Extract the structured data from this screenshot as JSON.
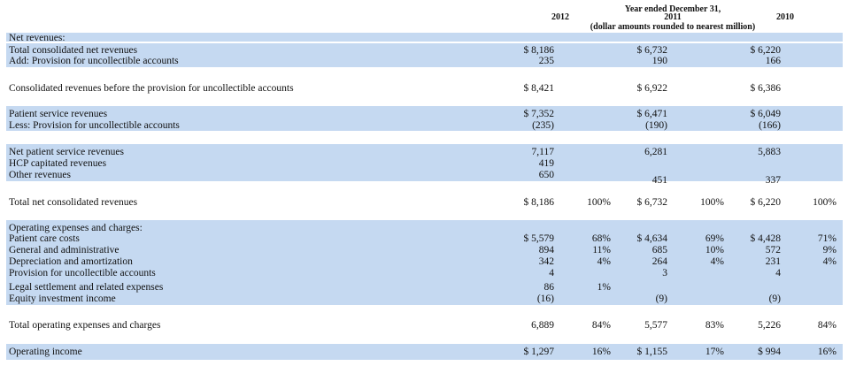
{
  "header": {
    "year_2012": "2012",
    "period_title": "Year ended December 31,",
    "year_2011": "2011",
    "units_note": "(dollar amounts rounded to nearest million)",
    "year_2010": "2010"
  },
  "rows": [
    {
      "label": "Net revenues:",
      "c2012": "",
      "p2012": "",
      "c2011": "",
      "p2011": "",
      "c2010": "",
      "p2010": ""
    },
    {
      "label": "Total consolidated net revenues",
      "c2012": "$ 8,186",
      "p2012": "",
      "c2011": "$ 6,732",
      "p2011": "",
      "c2010": "$ 6,220",
      "p2010": ""
    },
    {
      "label": "Add: Provision for uncollectible accounts",
      "c2012": "235",
      "p2012": "",
      "c2011": "190",
      "p2011": "",
      "c2010": "166",
      "p2010": ""
    },
    {
      "label": "Consolidated revenues before the provision for uncollectible accounts",
      "c2012": "$ 8,421",
      "p2012": "",
      "c2011": "$ 6,922",
      "p2011": "",
      "c2010": "$ 6,386",
      "p2010": ""
    },
    {
      "label": "Patient service revenues",
      "c2012": "$ 7,352",
      "p2012": "",
      "c2011": "$ 6,471",
      "p2011": "",
      "c2010": "$ 6,049",
      "p2010": ""
    },
    {
      "label": "Less: Provision for uncollectible accounts",
      "c2012": "(235)",
      "p2012": "",
      "c2011": "(190)",
      "p2011": "",
      "c2010": "(166)",
      "p2010": ""
    },
    {
      "label": "Net patient service revenues",
      "c2012": "7,117",
      "p2012": "",
      "c2011": "6,281",
      "p2011": "",
      "c2010": "5,883",
      "p2010": ""
    },
    {
      "label": "HCP capitated revenues",
      "c2012": "419",
      "p2012": "",
      "c2011": "",
      "p2011": "",
      "c2010": "",
      "p2010": ""
    },
    {
      "label": "Other revenues",
      "c2012": "650",
      "p2012": "",
      "c2011": "451",
      "p2011": "",
      "c2010": "337",
      "p2010": ""
    },
    {
      "label": "Total net consolidated revenues",
      "c2012": "$ 8,186",
      "p2012": "100%",
      "c2011": "$ 6,732",
      "p2011": "100%",
      "c2010": "$ 6,220",
      "p2010": "100%"
    },
    {
      "label": "Operating expenses and charges:",
      "c2012": "",
      "p2012": "",
      "c2011": "",
      "p2011": "",
      "c2010": "",
      "p2010": ""
    },
    {
      "label": "Patient care costs",
      "c2012": "$ 5,579",
      "p2012": "68%",
      "c2011": "$ 4,634",
      "p2011": "69%",
      "c2010": "$ 4,428",
      "p2010": "71%"
    },
    {
      "label": "General and administrative",
      "c2012": "894",
      "p2012": "11%",
      "c2011": "685",
      "p2011": "10%",
      "c2010": "572",
      "p2010": "9%"
    },
    {
      "label": "Depreciation and amortization",
      "c2012": "342",
      "p2012": "4%",
      "c2011": "264",
      "p2011": "4%",
      "c2010": "231",
      "p2010": "4%"
    },
    {
      "label": "Provision for uncollectible accounts",
      "c2012": "4",
      "p2012": "",
      "c2011": "3",
      "p2011": "",
      "c2010": "4",
      "p2010": ""
    },
    {
      "label": "Legal settlement and related expenses",
      "c2012": "86",
      "p2012": "1%",
      "c2011": "",
      "p2011": "",
      "c2010": "",
      "p2010": ""
    },
    {
      "label": "Equity investment income",
      "c2012": "(16)",
      "p2012": "",
      "c2011": "(9)",
      "p2011": "",
      "c2010": "(9)",
      "p2010": ""
    },
    {
      "label": "Total operating expenses and charges",
      "c2012": "6,889",
      "p2012": "84%",
      "c2011": "5,577",
      "p2011": "83%",
      "c2010": "5,226",
      "p2010": "84%"
    },
    {
      "label": "Operating income",
      "c2012": "$ 1,297",
      "p2012": "16%",
      "c2011": "$ 1,155",
      "p2011": "17%",
      "c2010": "$ 994",
      "p2010": "16%"
    }
  ]
}
